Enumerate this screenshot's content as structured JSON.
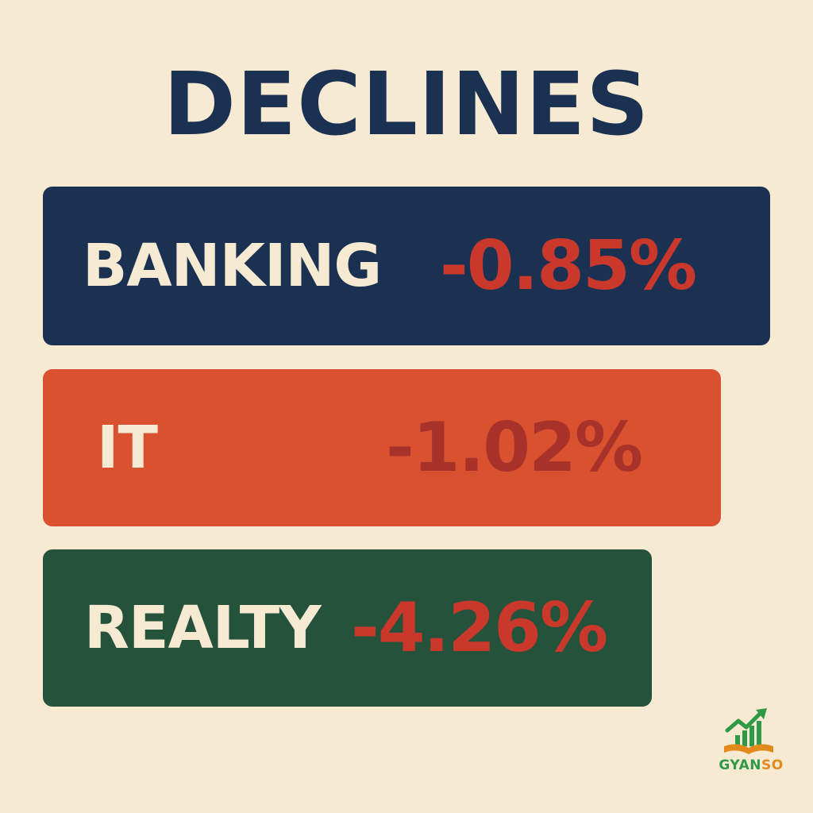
{
  "title": "DECLINES",
  "colors": {
    "background": "#f7ead3",
    "title": "#1b3152",
    "label": "#f7ead3",
    "value": "#c9382b"
  },
  "sectors": [
    {
      "label": "BANKING",
      "value": "-0.85%",
      "bar_color": "#1b3152",
      "value_color": "#c9382b"
    },
    {
      "label": "IT",
      "value": "-1.02%",
      "bar_color": "#d9512e",
      "value_color": "#a8322a"
    },
    {
      "label": "REALTY",
      "value": "-4.26%",
      "bar_color": "#25523a",
      "value_color": "#c9382b"
    }
  ],
  "logo": {
    "text_part1": "GYAN",
    "text_part2": "SO",
    "icon": "rising-chart-book-icon"
  }
}
